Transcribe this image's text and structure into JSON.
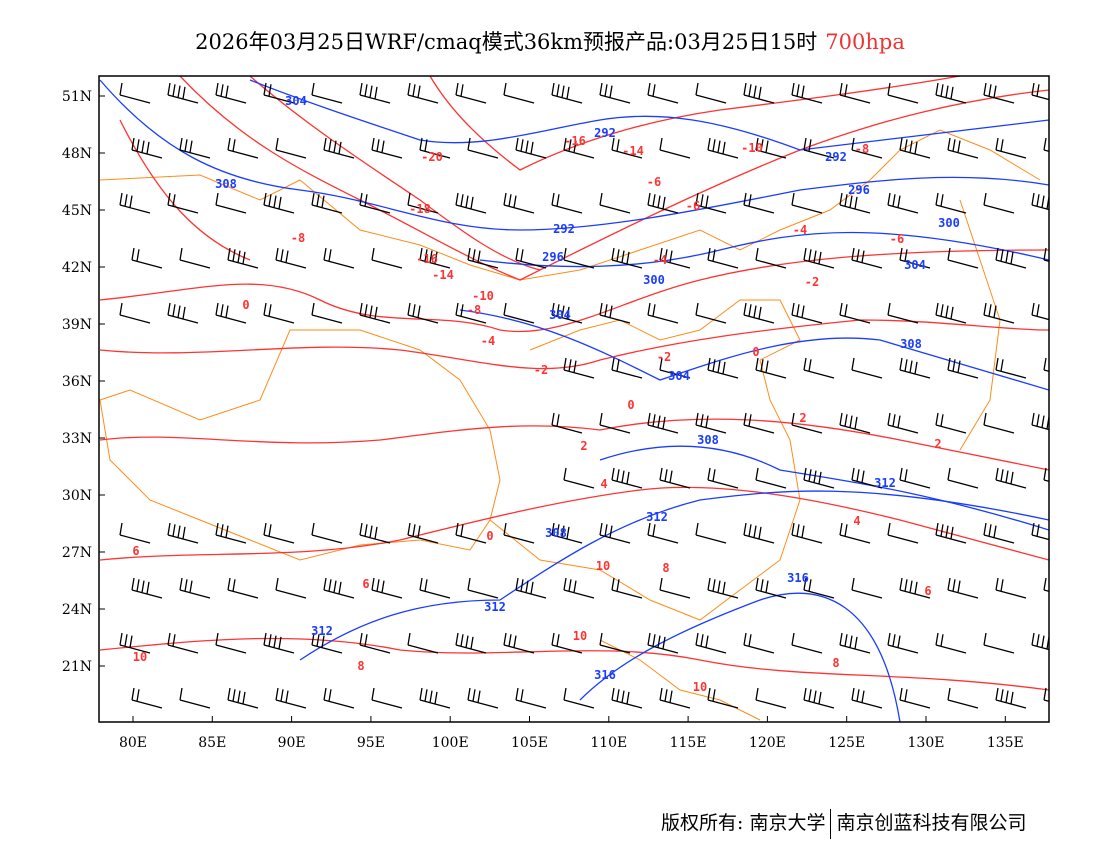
{
  "title": {
    "main": "2026年03月25日WRF/cmaq模式36km预报产品:03月25日15时",
    "level": "700hpa"
  },
  "axes": {
    "lon_ticks": [
      "80E",
      "85E",
      "90E",
      "95E",
      "100E",
      "105E",
      "110E",
      "115E",
      "120E",
      "125E",
      "130E",
      "135E"
    ],
    "lat_ticks": [
      "51N",
      "48N",
      "45N",
      "42N",
      "39N",
      "36N",
      "33N",
      "30N",
      "27N",
      "24N",
      "21N"
    ]
  },
  "colors": {
    "temperature": "#ff3333",
    "height": "#1a3cff",
    "border": "#ff8c1a",
    "wind": "#000000"
  },
  "temperature_labels": [
    "-20",
    "-16",
    "-14",
    "-10",
    "-8",
    "-6",
    "-6",
    "-18",
    "-8",
    "-16",
    "-14",
    "-10",
    "-8",
    "-4",
    "-6",
    "-4",
    "-2",
    "-4",
    "-2",
    "-2",
    "0",
    "0",
    "0",
    "2",
    "2",
    "2",
    "4",
    "4",
    "0",
    "6",
    "6",
    "10",
    "8",
    "6",
    "10",
    "10",
    "8",
    "8",
    "10"
  ],
  "height_labels": [
    "304",
    "292",
    "292",
    "296",
    "308",
    "292",
    "296",
    "300",
    "300",
    "304",
    "304",
    "308",
    "304",
    "308",
    "312",
    "312",
    "308",
    "316",
    "312",
    "312",
    "316"
  ],
  "footer": {
    "left": "版权所有: 南京大学",
    "right": "南京创蓝科技有限公司"
  }
}
